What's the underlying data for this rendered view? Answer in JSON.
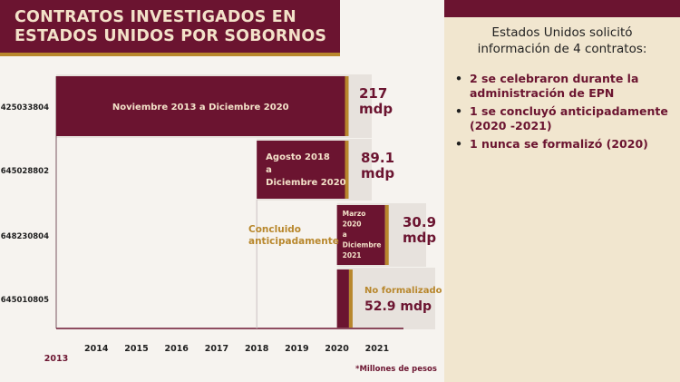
{
  "title": {
    "line1": "CONTRATOS INVESTIGADOS EN",
    "line2": "ESTADOS UNIDOS POR SOBORNOS"
  },
  "info": {
    "heading_line1": "Estados Unidos solicitó",
    "heading_line2": "información de 4 contratos:",
    "bullets": [
      "2 se celebraron durante la administración de EPN",
      "1 se concluyó anticipadamente (2020 -2021)",
      "1 nunca se formalizó (2020)"
    ]
  },
  "footnote": "*Millones de pesos",
  "colors": {
    "bar": "#6b1430",
    "accent": "#b8872c",
    "panel": "#f1e6cf",
    "label": "#b8872c"
  },
  "chart_data": {
    "type": "bar",
    "orientation": "horizontal-timeline",
    "x_ticks": [
      "2013",
      "2014",
      "2015",
      "2016",
      "2017",
      "2018",
      "2019",
      "2020",
      "2021"
    ],
    "xlim": [
      2013,
      2022
    ],
    "contracts": [
      {
        "id": "425033804",
        "start": 2013.0,
        "end": 2020.2,
        "period_lines": [
          "Noviembre 2013 a Diciembre 2020"
        ],
        "amount_lines": [
          "217",
          "mdp"
        ]
      },
      {
        "id": "645028802",
        "start": 2018.0,
        "end": 2020.2,
        "period_lines": [
          "Agosto 2018",
          "a",
          "Diciembre 2020"
        ],
        "amount_lines": [
          "89.1",
          "mdp"
        ]
      },
      {
        "id": "648230804",
        "start": 2020.0,
        "end": 2021.2,
        "period_lines": [
          "Marzo",
          "2020",
          "a",
          "Diciembre",
          "2021"
        ],
        "amount_lines": [
          "30.9",
          "mdp"
        ]
      },
      {
        "id": "645010805",
        "start": 2020.0,
        "end": 2020.3,
        "period_lines": [],
        "status_label": "No formalizado",
        "amount_lines": [
          "52.9 mdp"
        ]
      }
    ],
    "annotation": {
      "lines": [
        "Concluido",
        "anticipadamente"
      ],
      "from": 2019.0,
      "to": 2021.0
    }
  }
}
